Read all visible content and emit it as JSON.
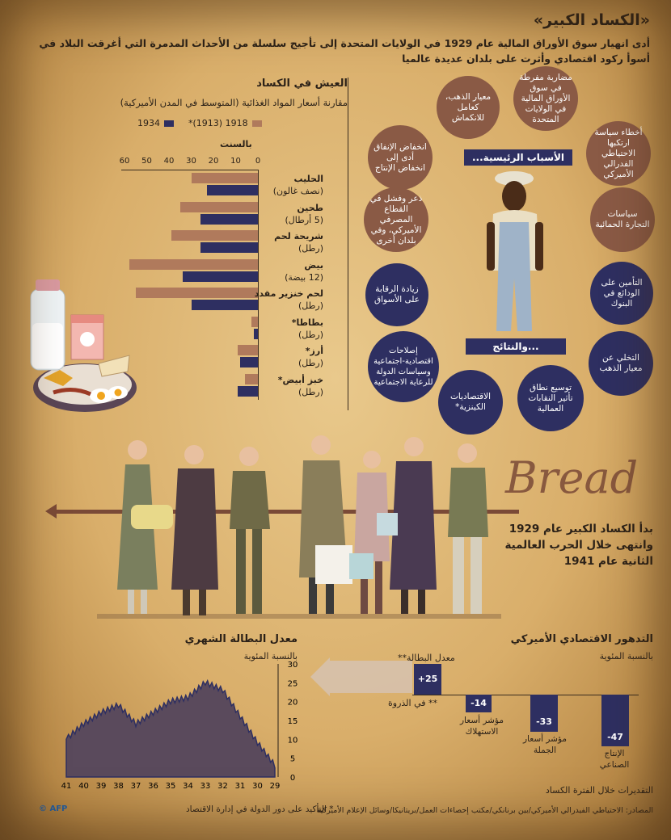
{
  "header": {
    "title": "«الكساد الكبير»",
    "subtitle": "أدى انهيار سوق الأوراق المالية عام 1929 في الولايات المتحدة إلى تأجيج سلسلة من الأحداث المدمرة التي أغرقت البلاد في أسوأ ركود اقتصادي وأثرت على بلدان عديدة عالميا"
  },
  "living": {
    "title": "العيش في الكساد",
    "subtitle": "مقارنة أسعار المواد الغذائية (المتوسط في المدن الأميركية)",
    "legend_1918": "1918 (1913)*",
    "legend_1934": "1934",
    "cents_label": "بالسنت",
    "ticks": [
      "60",
      "50",
      "40",
      "30",
      "20",
      "10",
      "0"
    ],
    "foods": [
      {
        "name": "الحليب",
        "unit": "(نصف غالون)"
      },
      {
        "name": "طحين",
        "unit": "(5 أرطال)"
      },
      {
        "name": "شريحة لحم",
        "unit": "(رطل)"
      },
      {
        "name": "بيض",
        "unit": "(12 بيضة)"
      },
      {
        "name": "لحم خنزير مقدد",
        "unit": "(رطل)"
      },
      {
        "name": "بطاطا*",
        "unit": "(رطل)"
      },
      {
        "name": "أرز*",
        "unit": "(رطل)"
      },
      {
        "name": "خبز أبيض*",
        "unit": "(رطل)"
      }
    ]
  },
  "chart_data": [
    {
      "type": "bar",
      "title": "العيش في الكساد",
      "xlabel": "بالسنت",
      "xlim": [
        0,
        60
      ],
      "categories": [
        "الحليب",
        "طحين",
        "شريحة لحم",
        "بيض",
        "لحم خنزير مقدد",
        "بطاطا*",
        "أرز*",
        "خبز أبيض*"
      ],
      "series": [
        {
          "name": "1918 (1913)*",
          "values": [
            30,
            35,
            39,
            58,
            55,
            3,
            9,
            6
          ]
        },
        {
          "name": "1934",
          "values": [
            23,
            26,
            26,
            34,
            30,
            2,
            8,
            9
          ]
        }
      ]
    },
    {
      "type": "area",
      "title": "معدل البطالة الشهري",
      "ylabel": "بالنسبة المئوية",
      "x": [
        "29",
        "30",
        "31",
        "32",
        "33",
        "34",
        "35",
        "36",
        "37",
        "38",
        "39",
        "40",
        "41"
      ],
      "ylim": [
        0,
        30
      ],
      "yticks": [
        0,
        5,
        10,
        15,
        20,
        25,
        30
      ],
      "values": [
        3,
        9,
        16,
        23,
        25,
        21,
        20,
        17,
        14,
        19,
        17,
        14,
        10
      ]
    },
    {
      "type": "bar",
      "title": "التدهور الاقتصادي الأميركي",
      "ylabel": "بالنسبة المئوية",
      "categories": [
        "الإنتاج الصناعي",
        "مؤشر أسعار الجملة",
        "مؤشر أسعار الاستهلاك",
        "معدل البطالة**"
      ],
      "values": [
        -47,
        -33,
        -14,
        25
      ]
    }
  ],
  "causes": {
    "banner": "الأسباب الرئيسية...",
    "items": [
      "مضاربة مفرطة في سوق الأوراق المالية في الولايات المتحدة",
      "معيار الذهب، كعامل للانكماش",
      "انخفاض الإنفاق أدى إلى انخفاض الإنتاج",
      "أخطاء سياسة ارتكبها الاحتياطي الفدرالي الأميركي",
      "سياسات التجارة الحمائية",
      "ذعر وفشل في القطاع المصرفي الأميركي، وفي بلدان أخرى"
    ]
  },
  "effects": {
    "banner": "...والنتائج",
    "items": [
      "زيادة الرقابة على الأسواق",
      "التأمين على الودائع في البنوك",
      "إصلاحات اقتصادية-اجتماعية وسياسات الدولة للرعاية الاجتماعية",
      "التخلي عن معيار الذهب",
      "الاقتصاديات الكينزية*",
      "توسيع نطاق تأثير النقابات العمالية"
    ]
  },
  "timeline": {
    "bread_word": "Bread",
    "text": "بدأ الكساد الكبير عام 1929 وانتهى خلال الحرب العالمية الثانية عام 1941"
  },
  "unemployment": {
    "title": "معدل البطالة الشهري",
    "subtitle": "بالنسبة المئوية",
    "yticks": [
      "30",
      "25",
      "20",
      "15",
      "10",
      "5",
      "0"
    ],
    "xticks": [
      "41",
      "40",
      "39",
      "38",
      "37",
      "36",
      "35",
      "34",
      "33",
      "32",
      "31",
      "30",
      "29"
    ]
  },
  "economy": {
    "title": "التدهور الاقتصادي الأميركي",
    "subtitle": "بالنسبة المئوية",
    "unemp_label": "معدل البطالة**",
    "unemp_value": "+25",
    "peak_label": "** في الذروة",
    "cpi_value": "-14",
    "cpi_label": "مؤشر أسعار الاستهلاك",
    "wpi_value": "-33",
    "wpi_label": "مؤشر أسعار الجملة",
    "ind_value": "-47",
    "ind_label": "الإنتاج الصناعي",
    "estimates": "التقديرات خلال الفترة الكساد"
  },
  "footer": {
    "sources": "المصادر: الاحتياطي الفيدرالي الأميركي/بين برنانكي/مكتب إحصاءات العمل/بريتانيكا/وسائل الإعلام الأميركية",
    "note": "* التأكيد على دور الدولة في إدارة الاقتصاد",
    "credit": "© AFP"
  }
}
